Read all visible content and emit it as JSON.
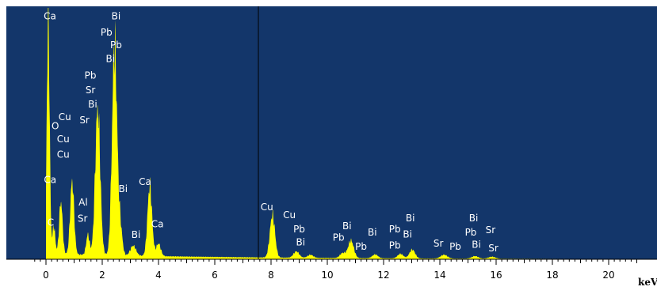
{
  "colors": {
    "plot_background": "#13366a",
    "spectrum_fill": "#ffff00",
    "axis": "#000000",
    "peak_label_text": "#ffffff",
    "cursor_line": "#000000"
  },
  "chart_data": {
    "type": "area",
    "title": "",
    "xlabel": "keV",
    "ylabel": "",
    "xlim": [
      -0.5,
      21.3
    ],
    "ylim": [
      0,
      100
    ],
    "x_ticks": [
      "0",
      "2",
      "4",
      "6",
      "8",
      "10",
      "12",
      "14",
      "16",
      "18",
      "20"
    ],
    "unit_label": "keV",
    "cursor_kev": 7.55,
    "grid": false,
    "legend": "none",
    "background_level": 2.2,
    "peaks": [
      {
        "kev": 0.08,
        "height": 97,
        "width": 0.05
      },
      {
        "kev": 0.28,
        "height": 11,
        "width": 0.05
      },
      {
        "kev": 0.53,
        "height": 21,
        "width": 0.06
      },
      {
        "kev": 0.93,
        "height": 29,
        "width": 0.07
      },
      {
        "kev": 1.49,
        "height": 8,
        "width": 0.06
      },
      {
        "kev": 1.84,
        "height": 58,
        "width": 0.09
      },
      {
        "kev": 2.44,
        "height": 84,
        "width": 0.09
      },
      {
        "kev": 2.65,
        "height": 10,
        "width": 0.07
      },
      {
        "kev": 3.1,
        "height": 4,
        "width": 0.1
      },
      {
        "kev": 3.69,
        "height": 28,
        "width": 0.08
      },
      {
        "kev": 4.0,
        "height": 5,
        "width": 0.08
      },
      {
        "kev": 8.05,
        "height": 17,
        "width": 0.09
      },
      {
        "kev": 8.9,
        "height": 2.5,
        "width": 0.1
      },
      {
        "kev": 9.4,
        "height": 1.2,
        "width": 0.1
      },
      {
        "kev": 10.55,
        "height": 2,
        "width": 0.1
      },
      {
        "kev": 10.84,
        "height": 7,
        "width": 0.1
      },
      {
        "kev": 11.7,
        "height": 1.5,
        "width": 0.1
      },
      {
        "kev": 12.6,
        "height": 1.8,
        "width": 0.1
      },
      {
        "kev": 13.02,
        "height": 3.5,
        "width": 0.1
      },
      {
        "kev": 14.15,
        "height": 1.5,
        "width": 0.12
      },
      {
        "kev": 15.25,
        "height": 1,
        "width": 0.12
      },
      {
        "kev": 15.85,
        "height": 0.8,
        "width": 0.12
      }
    ],
    "peak_labels": [
      {
        "text": "Ca",
        "kev": 0.14,
        "y": 95.4
      },
      {
        "text": "Bi",
        "kev": 2.49,
        "y": 95.4
      },
      {
        "text": "Pb",
        "kev": 2.15,
        "y": 89.0
      },
      {
        "text": "Pb",
        "kev": 2.49,
        "y": 84.0
      },
      {
        "text": "Bi",
        "kev": 2.29,
        "y": 78.5
      },
      {
        "text": "Pb",
        "kev": 1.58,
        "y": 71.8
      },
      {
        "text": "Sr",
        "kev": 1.58,
        "y": 66.0
      },
      {
        "text": "Bi",
        "kev": 1.66,
        "y": 60.3
      },
      {
        "text": "Cu",
        "kev": 0.67,
        "y": 55.3
      },
      {
        "text": "O",
        "kev": 0.33,
        "y": 51.7
      },
      {
        "text": "Sr",
        "kev": 1.37,
        "y": 54.1
      },
      {
        "text": "Cu",
        "kev": 0.61,
        "y": 46.5
      },
      {
        "text": "Cu",
        "kev": 0.61,
        "y": 40.4
      },
      {
        "text": "Ca",
        "kev": 0.15,
        "y": 30.4
      },
      {
        "text": "Bi",
        "kev": 2.74,
        "y": 26.7
      },
      {
        "text": "Ca",
        "kev": 3.52,
        "y": 29.5
      },
      {
        "text": "Al",
        "kev": 1.32,
        "y": 21.4
      },
      {
        "text": "Sr",
        "kev": 1.3,
        "y": 14.9
      },
      {
        "text": "C",
        "kev": 0.17,
        "y": 13.4
      },
      {
        "text": "Ca",
        "kev": 3.96,
        "y": 12.8
      },
      {
        "text": "Bi",
        "kev": 3.2,
        "y": 8.5
      },
      {
        "text": "Cu",
        "kev": 7.85,
        "y": 19.5
      },
      {
        "text": "Cu",
        "kev": 8.65,
        "y": 16.3
      },
      {
        "text": "Pb",
        "kev": 9.0,
        "y": 10.7
      },
      {
        "text": "Bi",
        "kev": 9.05,
        "y": 5.5
      },
      {
        "text": "Bi",
        "kev": 10.7,
        "y": 11.9
      },
      {
        "text": "Pb",
        "kev": 10.4,
        "y": 7.4
      },
      {
        "text": "Bi",
        "kev": 11.6,
        "y": 9.5
      },
      {
        "text": "Pb",
        "kev": 11.2,
        "y": 3.8
      },
      {
        "text": "Bi",
        "kev": 12.95,
        "y": 15.1
      },
      {
        "text": "Pb",
        "kev": 12.4,
        "y": 10.7
      },
      {
        "text": "Bi",
        "kev": 12.85,
        "y": 8.6
      },
      {
        "text": "Pb",
        "kev": 12.4,
        "y": 4.2
      },
      {
        "text": "Sr",
        "kev": 13.95,
        "y": 5.0
      },
      {
        "text": "Pb",
        "kev": 14.55,
        "y": 3.8
      },
      {
        "text": "Bi",
        "kev": 15.2,
        "y": 15.1
      },
      {
        "text": "Pb",
        "kev": 15.1,
        "y": 9.5
      },
      {
        "text": "Sr",
        "kev": 15.8,
        "y": 10.4
      },
      {
        "text": "Bi",
        "kev": 15.3,
        "y": 4.5
      },
      {
        "text": "Sr",
        "kev": 15.9,
        "y": 3.2
      }
    ]
  }
}
